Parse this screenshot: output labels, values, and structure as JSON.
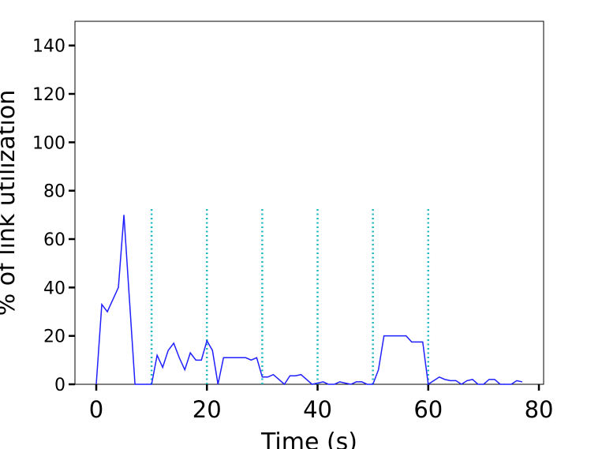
{
  "chart_data": {
    "type": "line",
    "xlabel": "Time (s)",
    "ylabel": "% of link utilization",
    "x": [
      0,
      1,
      2,
      3,
      4,
      5,
      6,
      7,
      8,
      9,
      10,
      11,
      12,
      13,
      14,
      15,
      16,
      17,
      18,
      19,
      20,
      21,
      22,
      23,
      24,
      25,
      26,
      27,
      28,
      29,
      30,
      31,
      32,
      33,
      34,
      35,
      36,
      37,
      38,
      39,
      40,
      41,
      42,
      43,
      44,
      45,
      46,
      47,
      48,
      49,
      50,
      51,
      52,
      53,
      54,
      55,
      56,
      57,
      58,
      59,
      60,
      61,
      62,
      63,
      64,
      65,
      66,
      67,
      68,
      69,
      70,
      71,
      72,
      73,
      74,
      75,
      76,
      77
    ],
    "series": [
      {
        "color": "#1f1fff",
        "values": [
          0,
          33,
          30,
          35,
          40,
          70,
          35,
          0,
          0,
          0,
          0,
          12,
          7,
          14,
          17,
          11,
          6,
          13,
          10,
          10,
          18,
          14,
          0,
          11,
          11,
          11,
          11,
          11,
          10,
          11,
          3,
          3,
          4,
          2,
          0,
          3.5,
          3.5,
          4,
          2,
          0,
          0.5,
          1,
          0,
          0,
          1,
          0.5,
          0,
          1,
          1,
          0,
          0,
          6,
          20,
          20,
          20,
          20,
          20,
          17.5,
          17.5,
          17.5,
          0,
          1.5,
          3,
          2,
          1.5,
          1.5,
          0,
          1.5,
          2,
          0,
          0,
          2,
          2,
          0,
          0,
          0,
          1.5,
          1
        ]
      }
    ],
    "vlines": {
      "x": [
        10,
        20,
        30,
        40,
        50,
        60
      ],
      "ymax": 73,
      "color": "#20b8c0"
    },
    "xlim": [
      -3.85,
      80.85
    ],
    "ylim": [
      0,
      150
    ],
    "xticks": [
      0,
      20,
      40,
      60,
      80
    ],
    "yticks": [
      0,
      20,
      40,
      60,
      80,
      100,
      120,
      140
    ]
  }
}
